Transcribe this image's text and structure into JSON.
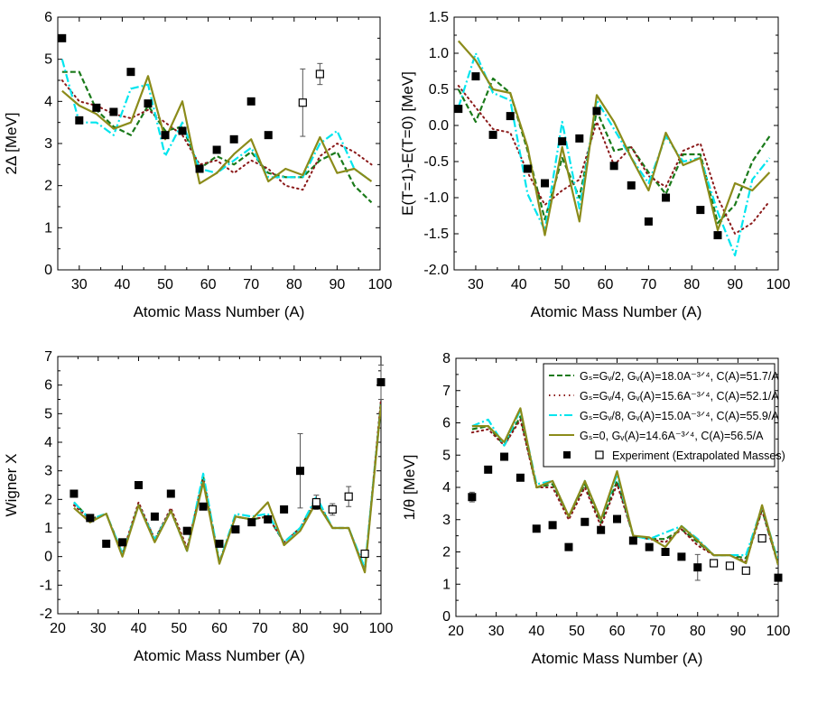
{
  "colors": {
    "gv2": "#1a7a1a",
    "gv4": "#8b1a1a",
    "gv8": "#00e5ee",
    "gs0": "#8b8b1a",
    "exp": "#000000"
  },
  "legend": {
    "entries": [
      {
        "key": "gv2",
        "label": "Gₛ=Gᵥ/2, Gᵥ(A)=18.0A⁻³ᐟ⁴, C(A)=51.7/A"
      },
      {
        "key": "gv4",
        "label": "Gₛ=Gᵥ/4, Gᵥ(A)=15.6A⁻³ᐟ⁴, C(A)=52.1/A"
      },
      {
        "key": "gv8",
        "label": "Gₛ=Gᵥ/8, Gᵥ(A)=15.0A⁻³ᐟ⁴, C(A)=55.9/A"
      },
      {
        "key": "gs0",
        "label": "Gₛ=0, Gᵥ(A)=14.6A⁻³ᐟ⁴, C(A)=56.5/A"
      }
    ],
    "exp_label": "Experiment (Extrapolated Masses)"
  },
  "chart_data": [
    {
      "type": "line",
      "xlabel": "Atomic Mass Number (A)",
      "ylabel": "2Δ [MeV]",
      "xlim": [
        25,
        100
      ],
      "ylim": [
        0,
        6
      ],
      "xticks": [
        30,
        40,
        50,
        60,
        70,
        80,
        90,
        100
      ],
      "yticks": [
        0,
        1,
        2,
        3,
        4,
        5,
        6
      ],
      "x": [
        26,
        30,
        34,
        38,
        42,
        46,
        50,
        54,
        58,
        62,
        66,
        70,
        74,
        78,
        82,
        86,
        90,
        94,
        98
      ],
      "series": [
        {
          "name": "gv2",
          "style": "dash",
          "values": [
            4.7,
            4.7,
            3.8,
            3.4,
            3.2,
            3.9,
            3.3,
            3.4,
            2.4,
            2.7,
            2.5,
            2.8,
            2.3,
            2.2,
            2.2,
            2.6,
            2.8,
            2.0,
            1.6
          ]
        },
        {
          "name": "gv4",
          "style": "dot",
          "values": [
            4.5,
            4.0,
            3.9,
            3.7,
            3.6,
            3.8,
            3.5,
            3.2,
            2.5,
            2.6,
            2.3,
            2.6,
            2.4,
            2.0,
            1.9,
            2.7,
            3.0,
            2.8,
            2.5
          ]
        },
        {
          "name": "gv8",
          "style": "dashdot",
          "values": [
            5.0,
            3.5,
            3.5,
            3.2,
            4.3,
            4.4,
            2.7,
            3.5,
            2.4,
            2.3,
            2.6,
            2.9,
            2.2,
            2.2,
            2.2,
            3.0,
            3.3,
            2.4,
            2.1
          ]
        },
        {
          "name": "gs0",
          "style": "solid",
          "values": [
            4.25,
            3.9,
            3.7,
            3.35,
            3.5,
            4.6,
            3.1,
            4.0,
            2.05,
            2.3,
            2.75,
            3.1,
            2.1,
            2.4,
            2.25,
            3.15,
            2.3,
            2.4,
            2.1
          ]
        }
      ],
      "experiment": [
        {
          "x": 26,
          "y": 5.5
        },
        {
          "x": 30,
          "y": 3.55
        },
        {
          "x": 34,
          "y": 3.85
        },
        {
          "x": 38,
          "y": 3.75
        },
        {
          "x": 42,
          "y": 4.7
        },
        {
          "x": 46,
          "y": 3.95
        },
        {
          "x": 50,
          "y": 3.2
        },
        {
          "x": 54,
          "y": 3.3
        },
        {
          "x": 58,
          "y": 2.4
        },
        {
          "x": 62,
          "y": 2.85
        },
        {
          "x": 66,
          "y": 3.1
        },
        {
          "x": 70,
          "y": 4.0
        },
        {
          "x": 74,
          "y": 3.2
        }
      ],
      "extrapolated": [
        {
          "x": 82,
          "y": 3.97,
          "err": 0.8
        },
        {
          "x": 86,
          "y": 4.65,
          "err": 0.25
        }
      ]
    },
    {
      "type": "line",
      "xlabel": "Atomic Mass Number (A)",
      "ylabel": "E(T=1)-E(T=0) [MeV]",
      "xlim": [
        25,
        100
      ],
      "ylim": [
        -2.0,
        1.5
      ],
      "xticks": [
        30,
        40,
        50,
        60,
        70,
        80,
        90,
        100
      ],
      "yticks": [
        -2.0,
        -1.5,
        -1.0,
        -0.5,
        0.0,
        0.5,
        1.0,
        1.5
      ],
      "ytick_labels": [
        "-2.0",
        "-1.5",
        "-1.0",
        "-0.5",
        "0.0",
        "0.5",
        "1.0",
        "1.5"
      ],
      "x": [
        26,
        30,
        34,
        38,
        42,
        46,
        50,
        54,
        58,
        62,
        66,
        70,
        74,
        78,
        82,
        86,
        90,
        94,
        98
      ],
      "series": [
        {
          "name": "gv2",
          "style": "dash",
          "values": [
            0.5,
            0.05,
            0.65,
            0.45,
            -0.35,
            -1.3,
            -0.45,
            -1.0,
            0.2,
            -0.35,
            -0.3,
            -0.65,
            -0.95,
            -0.4,
            -0.4,
            -1.35,
            -1.1,
            -0.5,
            -0.15
          ]
        },
        {
          "name": "gv4",
          "style": "dot",
          "values": [
            0.55,
            0.25,
            -0.05,
            -0.1,
            -0.65,
            -1.1,
            -0.9,
            -0.75,
            0.05,
            -0.55,
            -0.3,
            -0.7,
            -0.85,
            -0.35,
            -0.25,
            -1.0,
            -1.5,
            -1.35,
            -1.05
          ]
        },
        {
          "name": "gv8",
          "style": "dashdot",
          "values": [
            0.25,
            1.0,
            0.45,
            0.35,
            -0.95,
            -1.45,
            0.05,
            -1.15,
            0.35,
            -0.05,
            -0.45,
            -0.8,
            -0.15,
            -0.5,
            -0.45,
            -1.2,
            -1.8,
            -0.75,
            -0.45
          ]
        },
        {
          "name": "gs0",
          "style": "solid",
          "values": [
            1.17,
            0.9,
            0.5,
            0.45,
            -0.3,
            -1.52,
            -0.3,
            -1.33,
            0.42,
            0.05,
            -0.45,
            -0.9,
            -0.1,
            -0.55,
            -0.45,
            -1.45,
            -0.8,
            -0.9,
            -0.65
          ]
        }
      ],
      "experiment": [
        {
          "x": 26,
          "y": 0.23
        },
        {
          "x": 30,
          "y": 0.68
        },
        {
          "x": 34,
          "y": -0.13
        },
        {
          "x": 38,
          "y": 0.13
        },
        {
          "x": 42,
          "y": -0.6
        },
        {
          "x": 46,
          "y": -0.8
        },
        {
          "x": 50,
          "y": -0.22
        },
        {
          "x": 54,
          "y": -0.18
        },
        {
          "x": 58,
          "y": 0.2
        },
        {
          "x": 62,
          "y": -0.56
        },
        {
          "x": 66,
          "y": -0.83
        },
        {
          "x": 70,
          "y": -1.33
        },
        {
          "x": 74,
          "y": -1.0
        },
        {
          "x": 82,
          "y": -1.17
        },
        {
          "x": 86,
          "y": -1.52
        }
      ],
      "extrapolated": []
    },
    {
      "type": "line",
      "xlabel": "Atomic Mass Number (A)",
      "ylabel": "Wigner X",
      "xlim": [
        20,
        100
      ],
      "ylim": [
        -2,
        7
      ],
      "xticks": [
        20,
        30,
        40,
        50,
        60,
        70,
        80,
        90,
        100
      ],
      "yticks": [
        -2,
        -1,
        0,
        1,
        2,
        3,
        4,
        5,
        6,
        7
      ],
      "x": [
        24,
        28,
        32,
        36,
        40,
        44,
        48,
        52,
        56,
        60,
        64,
        68,
        72,
        76,
        80,
        84,
        88,
        92,
        96,
        100
      ],
      "series": [
        {
          "name": "gv2",
          "style": "dash",
          "values": [
            1.9,
            1.3,
            1.5,
            0.1,
            1.8,
            0.6,
            1.6,
            0.2,
            2.8,
            -0.2,
            1.4,
            1.3,
            1.4,
            0.5,
            1.0,
            2.0,
            1.0,
            1.0,
            -0.5,
            5.4
          ]
        },
        {
          "name": "gv4",
          "style": "dot",
          "values": [
            1.8,
            1.3,
            1.5,
            0.1,
            1.9,
            0.6,
            1.7,
            0.3,
            2.7,
            -0.2,
            1.4,
            1.3,
            1.4,
            0.5,
            1.0,
            2.0,
            1.0,
            1.0,
            -0.5,
            5.5
          ]
        },
        {
          "name": "gv8",
          "style": "dashdot",
          "values": [
            1.9,
            1.3,
            1.5,
            0.1,
            1.8,
            0.6,
            1.6,
            0.2,
            2.9,
            -0.2,
            1.5,
            1.4,
            1.5,
            0.5,
            1.0,
            2.1,
            1.0,
            1.0,
            -0.4,
            5.3
          ]
        },
        {
          "name": "gs0",
          "style": "solid",
          "values": [
            1.7,
            1.2,
            1.5,
            0.0,
            1.8,
            0.5,
            1.6,
            0.2,
            2.6,
            -0.25,
            1.4,
            1.3,
            1.9,
            0.4,
            0.9,
            1.9,
            1.0,
            1.0,
            -0.55,
            5.3
          ]
        }
      ],
      "experiment": [
        {
          "x": 24,
          "y": 2.2
        },
        {
          "x": 28,
          "y": 1.35
        },
        {
          "x": 32,
          "y": 0.45
        },
        {
          "x": 36,
          "y": 0.5
        },
        {
          "x": 40,
          "y": 2.5
        },
        {
          "x": 44,
          "y": 1.4
        },
        {
          "x": 48,
          "y": 2.2
        },
        {
          "x": 52,
          "y": 0.9
        },
        {
          "x": 56,
          "y": 1.75
        },
        {
          "x": 60,
          "y": 0.45
        },
        {
          "x": 64,
          "y": 0.95
        },
        {
          "x": 68,
          "y": 1.2
        },
        {
          "x": 72,
          "y": 1.3
        },
        {
          "x": 76,
          "y": 1.65
        },
        {
          "x": 80,
          "y": 3.0
        },
        {
          "x": 84,
          "y": 1.8
        },
        {
          "x": 100,
          "y": 6.1
        }
      ],
      "extrapolated": [
        {
          "x": 84,
          "y": 1.9,
          "err": 0.25
        },
        {
          "x": 88,
          "y": 1.65,
          "err": 0.2
        },
        {
          "x": 92,
          "y": 2.1,
          "err": 0.35
        },
        {
          "x": 96,
          "y": 0.1,
          "err": 0.1
        }
      ],
      "errors": [
        {
          "x": 80,
          "y": 3.0,
          "err": 1.3
        },
        {
          "x": 100,
          "y": 6.1,
          "err": 0.6
        }
      ]
    },
    {
      "type": "line",
      "xlabel": "Atomic Mass Number (A)",
      "ylabel": "1/θ [MeV]",
      "xlim": [
        20,
        100
      ],
      "ylim": [
        0,
        8
      ],
      "xticks": [
        20,
        30,
        40,
        50,
        60,
        70,
        80,
        90,
        100
      ],
      "yticks": [
        0,
        1,
        2,
        3,
        4,
        5,
        6,
        7,
        8
      ],
      "x": [
        24,
        28,
        32,
        36,
        40,
        44,
        48,
        52,
        56,
        60,
        64,
        68,
        72,
        76,
        80,
        84,
        88,
        92,
        96,
        100
      ],
      "series": [
        {
          "name": "gv2",
          "style": "dash",
          "values": [
            5.8,
            5.9,
            5.3,
            6.2,
            4.0,
            4.1,
            3.1,
            4.1,
            2.9,
            4.2,
            2.5,
            2.4,
            2.4,
            2.7,
            2.3,
            1.9,
            1.9,
            1.8,
            3.3,
            1.6
          ]
        },
        {
          "name": "gv4",
          "style": "dot",
          "values": [
            5.7,
            5.8,
            5.3,
            6.1,
            4.0,
            4.0,
            3.0,
            4.0,
            2.8,
            4.1,
            2.5,
            2.4,
            2.3,
            2.7,
            2.2,
            1.9,
            1.9,
            1.7,
            3.3,
            1.6
          ]
        },
        {
          "name": "gv8",
          "style": "dashdot",
          "values": [
            5.9,
            6.1,
            5.3,
            6.4,
            4.1,
            4.2,
            3.1,
            4.2,
            3.0,
            4.4,
            2.5,
            2.4,
            2.6,
            2.8,
            2.4,
            1.9,
            1.9,
            1.9,
            3.4,
            1.7
          ]
        },
        {
          "name": "gs0",
          "style": "solid",
          "values": [
            5.9,
            5.9,
            5.4,
            6.45,
            4.0,
            4.2,
            3.1,
            4.2,
            3.0,
            4.5,
            2.5,
            2.45,
            2.15,
            2.8,
            2.35,
            1.9,
            1.9,
            1.65,
            3.45,
            1.6
          ]
        }
      ],
      "experiment": [
        {
          "x": 24,
          "y": 3.7
        },
        {
          "x": 28,
          "y": 4.55
        },
        {
          "x": 32,
          "y": 4.95
        },
        {
          "x": 36,
          "y": 4.3
        },
        {
          "x": 40,
          "y": 2.72
        },
        {
          "x": 44,
          "y": 2.83
        },
        {
          "x": 48,
          "y": 2.15
        },
        {
          "x": 52,
          "y": 2.93
        },
        {
          "x": 56,
          "y": 2.68
        },
        {
          "x": 60,
          "y": 3.02
        },
        {
          "x": 64,
          "y": 2.35
        },
        {
          "x": 68,
          "y": 2.15
        },
        {
          "x": 72,
          "y": 2.0
        },
        {
          "x": 76,
          "y": 1.85
        },
        {
          "x": 80,
          "y": 1.52
        },
        {
          "x": 100,
          "y": 1.2
        }
      ],
      "extrapolated": [
        {
          "x": 84,
          "y": 1.65,
          "err": 0.1
        },
        {
          "x": 88,
          "y": 1.57,
          "err": 0.1
        },
        {
          "x": 92,
          "y": 1.42,
          "err": 0.1
        },
        {
          "x": 96,
          "y": 2.42,
          "err": 0.1
        }
      ],
      "errors": [
        {
          "x": 24,
          "y": 3.7,
          "err": 0.15
        },
        {
          "x": 80,
          "y": 1.52,
          "err": 0.4
        }
      ]
    }
  ]
}
